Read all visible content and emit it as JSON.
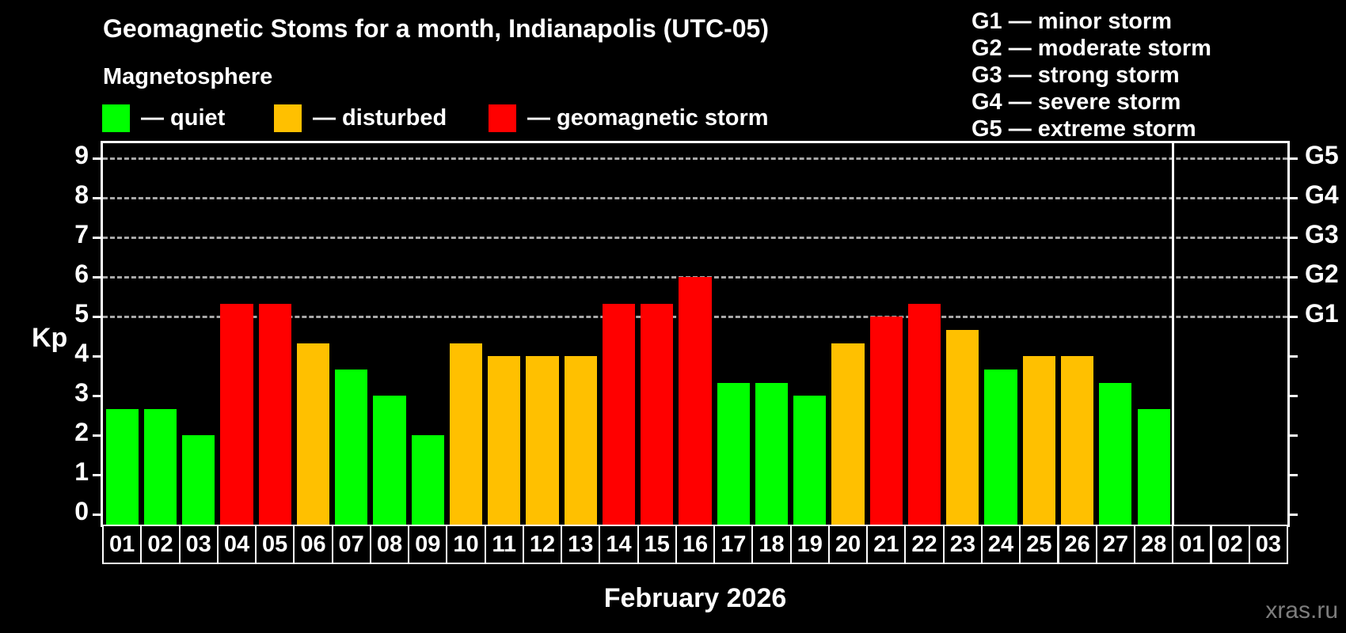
{
  "header": {
    "title": "Geomagnetic Stoms for a month, Indianapolis (UTC-05)"
  },
  "legend": {
    "heading": "Magnetosphere",
    "items": [
      {
        "name": "quiet",
        "label": "— quiet",
        "color": "#00FF00"
      },
      {
        "name": "disturbed",
        "label": "— disturbed",
        "color": "#FFC000"
      },
      {
        "name": "storm",
        "label": "— geomagnetic storm",
        "color": "#FF0000"
      }
    ]
  },
  "g_legend": {
    "lines": [
      "G1 — minor storm",
      "G2 — moderate storm",
      "G3 — strong storm",
      "G4 — severe storm",
      "G5 — extreme storm"
    ]
  },
  "axis": {
    "ylabel": "Kp",
    "yticks": [
      0,
      1,
      2,
      3,
      4,
      5,
      6,
      7,
      8,
      9
    ],
    "g_ticks": [
      {
        "label": "G1",
        "kp": 5
      },
      {
        "label": "G2",
        "kp": 6
      },
      {
        "label": "G3",
        "kp": 7
      },
      {
        "label": "G4",
        "kp": 8
      },
      {
        "label": "G5",
        "kp": 9
      }
    ]
  },
  "chart_data": {
    "type": "bar",
    "title": "Geomagnetic Stoms for a month, Indianapolis (UTC-05)",
    "xlabel": "February 2026",
    "ylabel": "Kp",
    "ylim": [
      0,
      9
    ],
    "grid": "dashed horizontal at Kp 5-9 (G1-G5)",
    "grid_levels_kp": [
      5,
      6,
      7,
      8,
      9
    ],
    "february_days": 28,
    "status_colors": {
      "quiet": "#00FF00",
      "disturbed": "#FFC000",
      "storm": "#FF0000"
    },
    "days": [
      {
        "month": "feb",
        "label": "01",
        "kp": 2.67,
        "status": "quiet"
      },
      {
        "month": "feb",
        "label": "02",
        "kp": 2.67,
        "status": "quiet"
      },
      {
        "month": "feb",
        "label": "03",
        "kp": 2.0,
        "status": "quiet"
      },
      {
        "month": "feb",
        "label": "04",
        "kp": 5.33,
        "status": "storm"
      },
      {
        "month": "feb",
        "label": "05",
        "kp": 5.33,
        "status": "storm"
      },
      {
        "month": "feb",
        "label": "06",
        "kp": 4.33,
        "status": "disturbed"
      },
      {
        "month": "feb",
        "label": "07",
        "kp": 3.67,
        "status": "quiet"
      },
      {
        "month": "feb",
        "label": "08",
        "kp": 3.0,
        "status": "quiet"
      },
      {
        "month": "feb",
        "label": "09",
        "kp": 2.0,
        "status": "quiet"
      },
      {
        "month": "feb",
        "label": "10",
        "kp": 4.33,
        "status": "disturbed"
      },
      {
        "month": "feb",
        "label": "11",
        "kp": 4.0,
        "status": "disturbed"
      },
      {
        "month": "feb",
        "label": "12",
        "kp": 4.0,
        "status": "disturbed"
      },
      {
        "month": "feb",
        "label": "13",
        "kp": 4.0,
        "status": "disturbed"
      },
      {
        "month": "feb",
        "label": "14",
        "kp": 5.33,
        "status": "storm"
      },
      {
        "month": "feb",
        "label": "15",
        "kp": 5.33,
        "status": "storm"
      },
      {
        "month": "feb",
        "label": "16",
        "kp": 6.0,
        "status": "storm"
      },
      {
        "month": "feb",
        "label": "17",
        "kp": 3.33,
        "status": "quiet"
      },
      {
        "month": "feb",
        "label": "18",
        "kp": 3.33,
        "status": "quiet"
      },
      {
        "month": "feb",
        "label": "19",
        "kp": 3.0,
        "status": "quiet"
      },
      {
        "month": "feb",
        "label": "20",
        "kp": 4.33,
        "status": "disturbed"
      },
      {
        "month": "feb",
        "label": "21",
        "kp": 5.0,
        "status": "storm"
      },
      {
        "month": "feb",
        "label": "22",
        "kp": 5.33,
        "status": "storm"
      },
      {
        "month": "feb",
        "label": "23",
        "kp": 4.67,
        "status": "disturbed"
      },
      {
        "month": "feb",
        "label": "24",
        "kp": 3.67,
        "status": "quiet"
      },
      {
        "month": "feb",
        "label": "25",
        "kp": 4.0,
        "status": "disturbed"
      },
      {
        "month": "feb",
        "label": "26",
        "kp": 4.0,
        "status": "disturbed"
      },
      {
        "month": "feb",
        "label": "27",
        "kp": 3.33,
        "status": "quiet"
      },
      {
        "month": "feb",
        "label": "28",
        "kp": 2.67,
        "status": "quiet"
      },
      {
        "month": "mar",
        "label": "01",
        "kp": null,
        "status": null
      },
      {
        "month": "mar",
        "label": "02",
        "kp": null,
        "status": null
      },
      {
        "month": "mar",
        "label": "03",
        "kp": null,
        "status": null
      }
    ]
  },
  "footer": {
    "xlabel": "February 2026",
    "watermark": "xras.ru"
  }
}
